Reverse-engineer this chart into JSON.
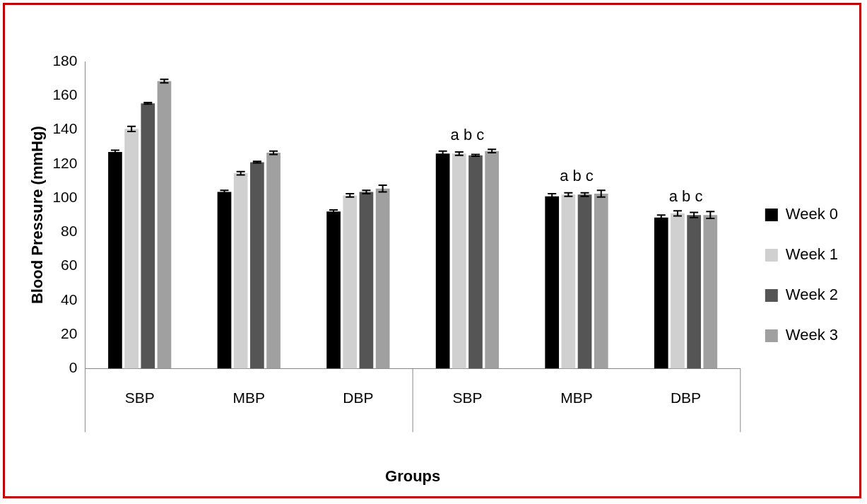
{
  "chart_data": {
    "type": "bar",
    "xlabel": "Groups",
    "ylabel": "Blood Pressure (mmHg)",
    "categories": [
      "SBP",
      "MBP",
      "DBP",
      "SBP",
      "MBP",
      "DBP"
    ],
    "series": [
      {
        "name": "Week 0",
        "color": "#000000",
        "values": [
          127,
          103.5,
          92,
          126,
          101,
          88.5
        ],
        "errors": [
          1,
          1,
          1,
          1.5,
          1.5,
          1.5
        ]
      },
      {
        "name": "Week 1",
        "color": "#d0d0d0",
        "values": [
          140.5,
          114.5,
          101.5,
          126,
          102,
          91
        ],
        "errors": [
          1.5,
          1,
          1,
          1,
          1,
          1.5
        ]
      },
      {
        "name": "Week 2",
        "color": "#555555",
        "values": [
          155.5,
          121,
          103.5,
          125,
          102,
          90
        ],
        "errors": [
          0.5,
          0.5,
          1,
          0.5,
          1,
          1.5
        ]
      },
      {
        "name": "Week 3",
        "color": "#a0a0a0",
        "values": [
          168.5,
          126.5,
          105.5,
          127.5,
          102.5,
          90
        ],
        "errors": [
          1,
          1,
          2,
          1,
          2,
          2
        ]
      }
    ],
    "ylim": [
      0,
      180
    ],
    "yticks": [
      0,
      20,
      40,
      60,
      80,
      100,
      120,
      140,
      160,
      180
    ],
    "grid": false,
    "legend": "right",
    "annotations": [
      "a b c",
      "a b c",
      "a b c"
    ]
  }
}
